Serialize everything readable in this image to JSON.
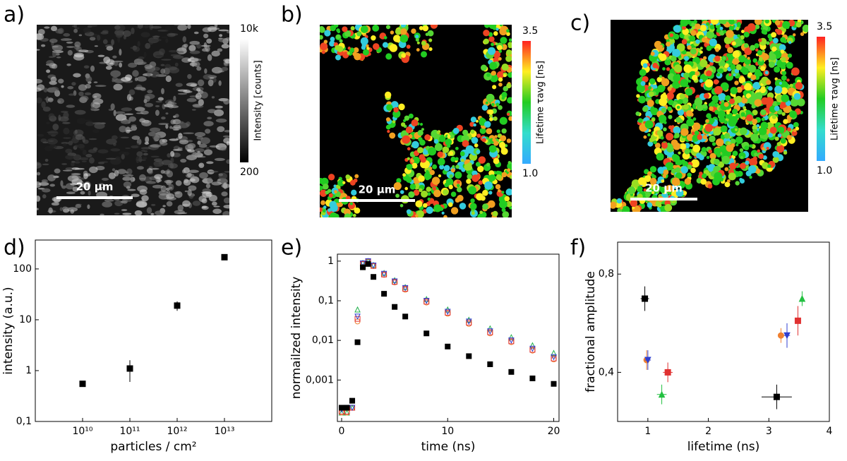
{
  "images": [
    {
      "label": "a)",
      "colormap": "gray",
      "colorbar_max": "10k",
      "colorbar_min": "200",
      "colorbar_title": "Intensity [counts]",
      "scale_bar": "20 µm"
    },
    {
      "label": "b)",
      "colormap": "rainbow",
      "colorbar_max": "3.5",
      "colorbar_min": "1.0",
      "colorbar_title": "Lifetime τavg [ns]",
      "scale_bar": "20 µm"
    },
    {
      "label": "c)",
      "colormap": "rainbow",
      "colorbar_max": "3.5",
      "colorbar_min": "1.0",
      "colorbar_title": "Lifetime τavg [ns]",
      "scale_bar": "20 µm"
    }
  ],
  "chart_data": [
    {
      "type": "scatter",
      "label": "d)",
      "xlabel": "particles / cm²",
      "ylabel": "intensity (a.u.)",
      "xscale": "log",
      "yscale": "log",
      "x": [
        10000000000,
        100000000000,
        1000000000000,
        10000000000000
      ],
      "series": [
        {
          "color": "#000000",
          "marker": "square",
          "values": [
            0.55,
            1.1,
            19,
            170
          ],
          "yerr": [
            0.07,
            0.5,
            4,
            10
          ]
        }
      ],
      "xlim": [
        1000000000,
        100000000000000
      ],
      "ylim": [
        0.1,
        370
      ],
      "xticks": [
        {
          "value": 10000000000,
          "label": "10¹⁰"
        },
        {
          "value": 100000000000,
          "label": "10¹¹"
        },
        {
          "value": 1000000000000,
          "label": "10¹²"
        },
        {
          "value": 10000000000000,
          "label": "10¹³"
        }
      ],
      "yticks": [
        {
          "value": 0.1,
          "label": "0,1"
        },
        1,
        10,
        100
      ]
    },
    {
      "type": "scatter",
      "label": "e)",
      "xlabel": "time (ns)",
      "ylabel": "normailzed intensity",
      "yscale": "log",
      "x": [
        0,
        0.5,
        1,
        1.5,
        2,
        2.5,
        3,
        4,
        5,
        6,
        8,
        10,
        12,
        14,
        16,
        18,
        20
      ],
      "series": [
        {
          "color": "#22b14c",
          "marker": "triangle-up",
          "values": [
            0.00015,
            0.00015,
            0.0002,
            0.06,
            0.9,
            1,
            0.8,
            0.5,
            0.33,
            0.22,
            0.11,
            0.06,
            0.033,
            0.02,
            0.012,
            0.0075,
            0.0048
          ]
        },
        {
          "color": "#f08030",
          "marker": "circle",
          "values": [
            0.00015,
            0.00015,
            0.0002,
            0.03,
            0.85,
            0.98,
            0.75,
            0.45,
            0.29,
            0.19,
            0.09,
            0.047,
            0.026,
            0.015,
            0.009,
            0.0055,
            0.0033
          ]
        },
        {
          "color": "#e03030",
          "marker": "square",
          "values": [
            0.00016,
            0.00016,
            0.0002,
            0.035,
            0.85,
            0.98,
            0.76,
            0.46,
            0.3,
            0.2,
            0.095,
            0.05,
            0.028,
            0.016,
            0.0095,
            0.0058,
            0.0035
          ]
        },
        {
          "color": "#2f3fd0",
          "marker": "triangle-down",
          "values": [
            0.00018,
            0.0002,
            0.0002,
            0.04,
            0.88,
            1,
            0.78,
            0.48,
            0.31,
            0.21,
            0.1,
            0.053,
            0.03,
            0.017,
            0.01,
            0.0062,
            0.0038
          ]
        },
        {
          "color": "#000000",
          "marker": "square",
          "values": [
            0.0002,
            0.0002,
            0.0003,
            0.009,
            0.7,
            0.85,
            0.4,
            0.15,
            0.07,
            0.04,
            0.015,
            0.007,
            0.004,
            0.0025,
            0.0016,
            0.0011,
            0.0008
          ]
        }
      ],
      "xlim": [
        -0.4,
        20.5
      ],
      "ylim": [
        9e-05,
        1.5
      ],
      "xticks": [
        0,
        10,
        20
      ],
      "yticks": [
        1,
        {
          "value": 0.1,
          "label": "0,1"
        },
        {
          "value": 0.01,
          "label": "0,01"
        },
        {
          "value": 0.001,
          "label": "0,001"
        }
      ]
    },
    {
      "type": "scatter",
      "label": "f)",
      "xlabel": "lifetime (ns)",
      "ylabel": "fractional amplitude",
      "series": [
        {
          "color": "#000000",
          "marker": "square",
          "x": [
            0.95,
            3.13
          ],
          "xerr": [
            0.07,
            0.25
          ],
          "values": [
            0.7,
            0.3
          ],
          "yerr": [
            0.05,
            0.05
          ]
        },
        {
          "color": "#f08030",
          "marker": "circle",
          "x": [
            0.98,
            3.2
          ],
          "xerr": [
            0.05,
            0.05
          ],
          "values": [
            0.45,
            0.55
          ],
          "yerr": [
            0.04,
            0.03
          ]
        },
        {
          "color": "#2f3fd0",
          "marker": "triangle-down",
          "x": [
            1.0,
            3.3
          ],
          "xerr": [
            0.05,
            0.05
          ],
          "values": [
            0.45,
            0.55
          ],
          "yerr": [
            0.04,
            0.05
          ]
        },
        {
          "color": "#e03030",
          "marker": "square",
          "x": [
            1.33,
            3.48
          ],
          "xerr": [
            0.08,
            0.05
          ],
          "values": [
            0.4,
            0.61
          ],
          "yerr": [
            0.04,
            0.06
          ]
        },
        {
          "color": "#22c040",
          "marker": "triangle-up",
          "x": [
            1.23,
            3.55
          ],
          "xerr": [
            0.08,
            0.03
          ],
          "values": [
            0.31,
            0.7
          ],
          "yerr": [
            0.04,
            0.03
          ]
        }
      ],
      "xlim": [
        0.5,
        4
      ],
      "ylim": [
        0.2,
        0.93
      ],
      "xticks": [
        1,
        2,
        3,
        4
      ],
      "yticks": [
        {
          "value": 0.8,
          "label": "0,8"
        },
        {
          "value": 0.4,
          "label": "0,4"
        }
      ]
    }
  ]
}
